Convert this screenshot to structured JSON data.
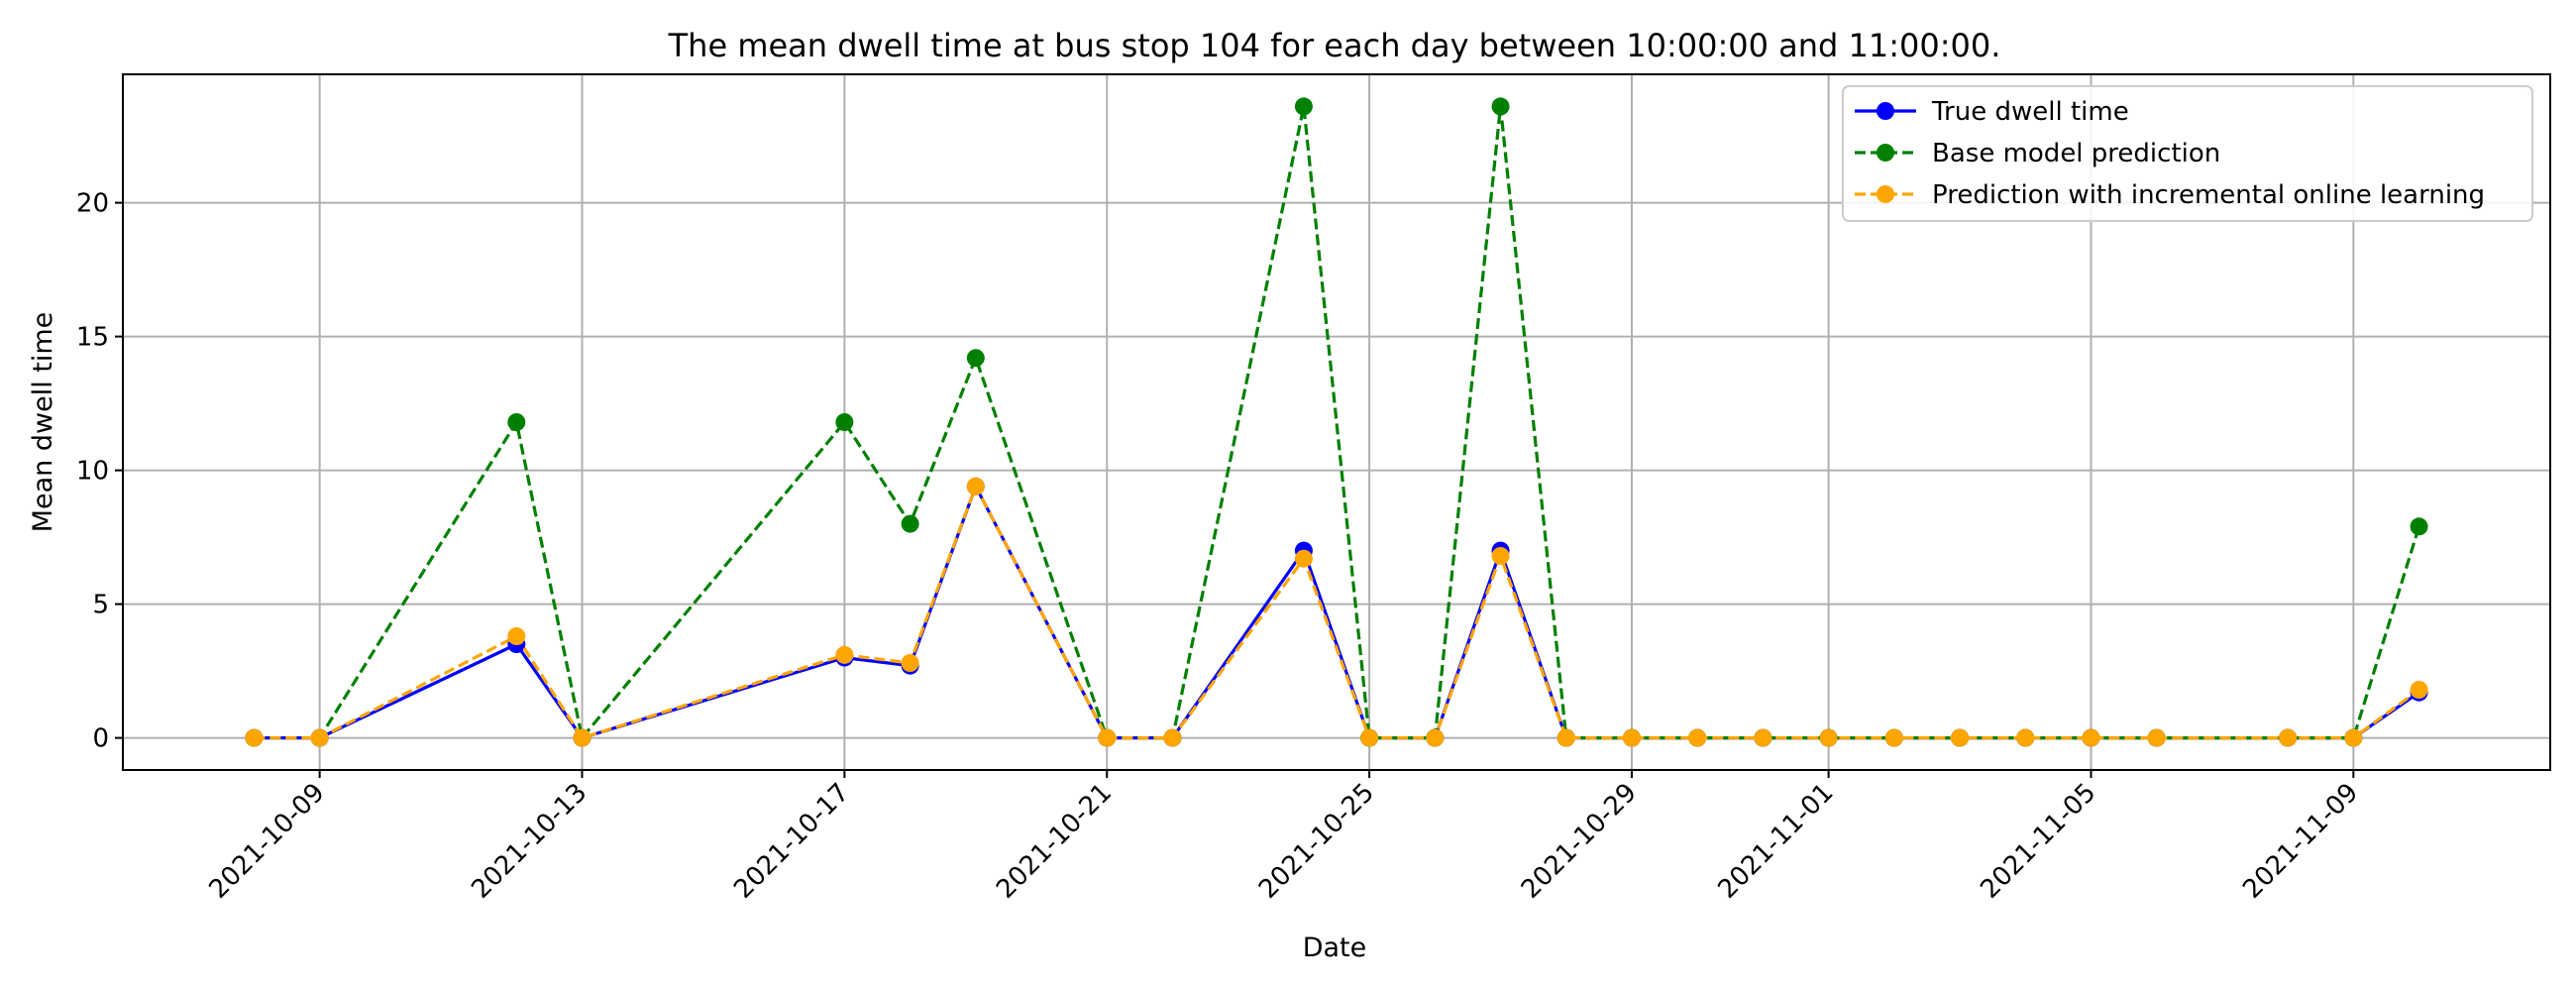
{
  "chart_data": {
    "type": "line",
    "title": "The mean dwell time at bus stop 104 for each day between 10:00:00 and 11:00:00.",
    "xlabel": "Date",
    "ylabel": "Mean dwell time",
    "xlim": [
      "2021-10-06",
      "2021-11-12"
    ],
    "ylim": [
      -1.2,
      24.8
    ],
    "grid": true,
    "legend_position": "top-right",
    "x_ticks": [
      "2021-10-09",
      "2021-10-13",
      "2021-10-17",
      "2021-10-21",
      "2021-10-25",
      "2021-10-29",
      "2021-11-01",
      "2021-11-05",
      "2021-11-09"
    ],
    "y_ticks": [
      "0",
      "5",
      "10",
      "15",
      "20"
    ],
    "y_tick_values": [
      0,
      5,
      10,
      15,
      20
    ],
    "x": [
      "2021-10-08",
      "2021-10-09",
      "2021-10-12",
      "2021-10-13",
      "2021-10-17",
      "2021-10-18",
      "2021-10-19",
      "2021-10-21",
      "2021-10-22",
      "2021-10-24",
      "2021-10-25",
      "2021-10-26",
      "2021-10-27",
      "2021-10-28",
      "2021-10-29",
      "2021-10-30",
      "2021-10-31",
      "2021-11-01",
      "2021-11-02",
      "2021-11-03",
      "2021-11-04",
      "2021-11-05",
      "2021-11-06",
      "2021-11-08",
      "2021-11-09",
      "2021-11-10"
    ],
    "series": [
      {
        "name": "True dwell time",
        "color": "#0000ff",
        "style": "solid",
        "values": [
          0,
          0,
          3.5,
          0,
          3.0,
          2.7,
          9.4,
          0,
          0,
          7.0,
          0,
          0,
          7.0,
          0,
          0,
          0,
          0,
          0,
          0,
          0,
          0,
          0,
          0,
          0,
          0,
          1.7
        ]
      },
      {
        "name": "Base model prediction",
        "color": "#008000",
        "style": "dashed",
        "values": [
          0,
          0,
          11.8,
          0,
          11.8,
          8.0,
          14.2,
          0,
          0,
          23.6,
          0,
          0,
          23.6,
          0,
          0,
          0,
          0,
          0,
          0,
          0,
          0,
          0,
          0,
          0,
          0,
          7.9
        ]
      },
      {
        "name": "Prediction with incremental online learning",
        "color": "#ffa500",
        "style": "dashed",
        "values": [
          0,
          0,
          3.8,
          0,
          3.1,
          2.8,
          9.4,
          0,
          0,
          6.7,
          0,
          0,
          6.8,
          0,
          0,
          0,
          0,
          0,
          0,
          0,
          0,
          0,
          0,
          0,
          0,
          1.8
        ]
      }
    ]
  }
}
